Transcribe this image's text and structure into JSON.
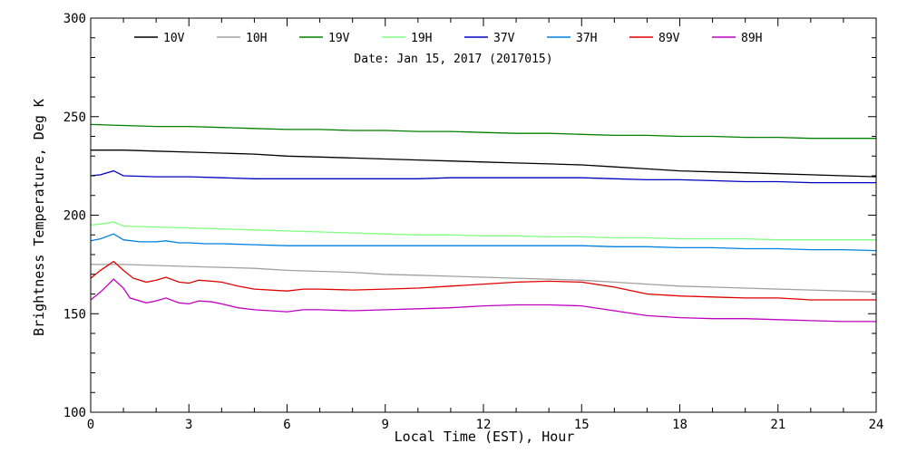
{
  "chart_data": {
    "type": "line",
    "subtitle": "Date: Jan 15, 2017 (2017015)",
    "xlabel": "Local Time (EST), Hour",
    "ylabel": "Brightness Temperature, Deg K",
    "xlim": [
      0,
      24
    ],
    "ylim": [
      100,
      300
    ],
    "xticks": [
      0,
      3,
      6,
      9,
      12,
      15,
      18,
      21,
      24
    ],
    "yticks": [
      100,
      150,
      200,
      250,
      300
    ],
    "grid": false,
    "legend_placement": "top",
    "series": [
      {
        "name": "10V",
        "color": "#000000",
        "points": [
          [
            0,
            233
          ],
          [
            1,
            233
          ],
          [
            2,
            232.5
          ],
          [
            3,
            232
          ],
          [
            4,
            231.5
          ],
          [
            5,
            231
          ],
          [
            6,
            230
          ],
          [
            7,
            229.5
          ],
          [
            8,
            229
          ],
          [
            9,
            228.5
          ],
          [
            10,
            228
          ],
          [
            11,
            227.5
          ],
          [
            12,
            227
          ],
          [
            13,
            226.5
          ],
          [
            14,
            226
          ],
          [
            15,
            225.5
          ],
          [
            16,
            224.5
          ],
          [
            17,
            223.5
          ],
          [
            18,
            222.5
          ],
          [
            19,
            222
          ],
          [
            20,
            221.5
          ],
          [
            21,
            221
          ],
          [
            22,
            220.5
          ],
          [
            23,
            220
          ],
          [
            24,
            219.5
          ]
        ]
      },
      {
        "name": "10H",
        "color": "#a0a0a0",
        "points": [
          [
            0,
            175
          ],
          [
            1,
            175
          ],
          [
            2,
            174.5
          ],
          [
            3,
            174
          ],
          [
            4,
            173.5
          ],
          [
            5,
            173
          ],
          [
            6,
            172
          ],
          [
            7,
            171.5
          ],
          [
            8,
            171
          ],
          [
            9,
            170
          ],
          [
            10,
            169.5
          ],
          [
            11,
            169
          ],
          [
            12,
            168.5
          ],
          [
            13,
            168
          ],
          [
            14,
            167.5
          ],
          [
            15,
            167
          ],
          [
            16,
            166
          ],
          [
            17,
            165
          ],
          [
            18,
            164
          ],
          [
            19,
            163.5
          ],
          [
            20,
            163
          ],
          [
            21,
            162.5
          ],
          [
            22,
            162
          ],
          [
            23,
            161.5
          ],
          [
            24,
            161
          ]
        ]
      },
      {
        "name": "19V",
        "color": "#008000",
        "points": [
          [
            0,
            246
          ],
          [
            1,
            245.5
          ],
          [
            2,
            245
          ],
          [
            3,
            245
          ],
          [
            4,
            244.5
          ],
          [
            5,
            244
          ],
          [
            6,
            243.5
          ],
          [
            7,
            243.5
          ],
          [
            8,
            243
          ],
          [
            9,
            243
          ],
          [
            10,
            242.5
          ],
          [
            11,
            242.5
          ],
          [
            12,
            242
          ],
          [
            13,
            241.5
          ],
          [
            14,
            241.5
          ],
          [
            15,
            241
          ],
          [
            16,
            240.5
          ],
          [
            17,
            240.5
          ],
          [
            18,
            240
          ],
          [
            19,
            240
          ],
          [
            20,
            239.5
          ],
          [
            21,
            239.5
          ],
          [
            22,
            239
          ],
          [
            23,
            239
          ],
          [
            24,
            239
          ]
        ]
      },
      {
        "name": "19H",
        "color": "#80ff80",
        "points": [
          [
            0,
            195
          ],
          [
            0.3,
            195.5
          ],
          [
            0.7,
            196.5
          ],
          [
            1,
            194.5
          ],
          [
            2,
            194
          ],
          [
            3,
            193.5
          ],
          [
            4,
            193
          ],
          [
            5,
            192.5
          ],
          [
            6,
            192
          ],
          [
            7,
            191.5
          ],
          [
            8,
            191
          ],
          [
            9,
            190.5
          ],
          [
            10,
            190
          ],
          [
            11,
            190
          ],
          [
            12,
            189.5
          ],
          [
            13,
            189.5
          ],
          [
            14,
            189
          ],
          [
            15,
            189
          ],
          [
            16,
            188.5
          ],
          [
            17,
            188.5
          ],
          [
            18,
            188
          ],
          [
            19,
            188
          ],
          [
            20,
            188
          ],
          [
            21,
            187.5
          ],
          [
            22,
            187.5
          ],
          [
            23,
            187.5
          ],
          [
            24,
            187.5
          ]
        ]
      },
      {
        "name": "37V",
        "color": "#0000c0",
        "points": [
          [
            0,
            220
          ],
          [
            0.3,
            220.5
          ],
          [
            0.7,
            222.5
          ],
          [
            1,
            220
          ],
          [
            2,
            219.5
          ],
          [
            3,
            219.5
          ],
          [
            4,
            219
          ],
          [
            5,
            218.5
          ],
          [
            6,
            218.5
          ],
          [
            7,
            218.5
          ],
          [
            8,
            218.5
          ],
          [
            9,
            218.5
          ],
          [
            10,
            218.5
          ],
          [
            11,
            219
          ],
          [
            12,
            219
          ],
          [
            13,
            219
          ],
          [
            14,
            219
          ],
          [
            15,
            219
          ],
          [
            16,
            218.5
          ],
          [
            17,
            218
          ],
          [
            18,
            218
          ],
          [
            19,
            217.5
          ],
          [
            20,
            217
          ],
          [
            21,
            217
          ],
          [
            22,
            216.5
          ],
          [
            23,
            216.5
          ],
          [
            24,
            216.5
          ]
        ]
      },
      {
        "name": "37H",
        "color": "#0080e0",
        "points": [
          [
            0,
            187
          ],
          [
            0.3,
            188
          ],
          [
            0.7,
            190.5
          ],
          [
            1,
            187.5
          ],
          [
            1.5,
            186.5
          ],
          [
            2,
            186.5
          ],
          [
            2.3,
            187
          ],
          [
            2.7,
            186
          ],
          [
            3,
            186
          ],
          [
            3.5,
            185.5
          ],
          [
            4,
            185.5
          ],
          [
            5,
            185
          ],
          [
            6,
            184.5
          ],
          [
            7,
            184.5
          ],
          [
            8,
            184.5
          ],
          [
            9,
            184.5
          ],
          [
            10,
            184.5
          ],
          [
            11,
            184.5
          ],
          [
            12,
            184.5
          ],
          [
            13,
            184.5
          ],
          [
            14,
            184.5
          ],
          [
            15,
            184.5
          ],
          [
            16,
            184
          ],
          [
            17,
            184
          ],
          [
            18,
            183.5
          ],
          [
            19,
            183.5
          ],
          [
            20,
            183
          ],
          [
            21,
            183
          ],
          [
            22,
            182.5
          ],
          [
            23,
            182.5
          ],
          [
            24,
            182
          ]
        ]
      },
      {
        "name": "89V",
        "color": "#e00000",
        "points": [
          [
            0,
            168
          ],
          [
            0.3,
            172
          ],
          [
            0.7,
            176.5
          ],
          [
            1,
            172
          ],
          [
            1.3,
            168
          ],
          [
            1.7,
            166
          ],
          [
            2,
            167
          ],
          [
            2.3,
            168.5
          ],
          [
            2.7,
            166
          ],
          [
            3,
            165.5
          ],
          [
            3.3,
            167
          ],
          [
            3.7,
            166.5
          ],
          [
            4,
            166
          ],
          [
            4.5,
            164
          ],
          [
            5,
            162.5
          ],
          [
            6,
            161.5
          ],
          [
            6.5,
            162.5
          ],
          [
            7,
            162.5
          ],
          [
            8,
            162
          ],
          [
            9,
            162.5
          ],
          [
            10,
            163
          ],
          [
            11,
            164
          ],
          [
            12,
            165
          ],
          [
            13,
            166
          ],
          [
            14,
            166.5
          ],
          [
            15,
            166
          ],
          [
            16,
            163.5
          ],
          [
            17,
            160
          ],
          [
            18,
            159
          ],
          [
            19,
            158.5
          ],
          [
            20,
            158
          ],
          [
            21,
            158
          ],
          [
            22,
            157
          ],
          [
            23,
            157
          ],
          [
            24,
            157
          ]
        ]
      },
      {
        "name": "89H",
        "color": "#c000c0",
        "points": [
          [
            0,
            157
          ],
          [
            0.3,
            161
          ],
          [
            0.7,
            167.5
          ],
          [
            1,
            163
          ],
          [
            1.2,
            158
          ],
          [
            1.7,
            155.5
          ],
          [
            2,
            156.5
          ],
          [
            2.3,
            158
          ],
          [
            2.7,
            155.5
          ],
          [
            3,
            155
          ],
          [
            3.3,
            156.5
          ],
          [
            3.7,
            156
          ],
          [
            4,
            155
          ],
          [
            4.5,
            153
          ],
          [
            5,
            152
          ],
          [
            6,
            151
          ],
          [
            6.5,
            152
          ],
          [
            7,
            152
          ],
          [
            8,
            151.5
          ],
          [
            9,
            152
          ],
          [
            10,
            152.5
          ],
          [
            11,
            153
          ],
          [
            12,
            154
          ],
          [
            13,
            154.5
          ],
          [
            14,
            154.5
          ],
          [
            15,
            154
          ],
          [
            16,
            151.5
          ],
          [
            17,
            149
          ],
          [
            18,
            148
          ],
          [
            19,
            147.5
          ],
          [
            20,
            147.5
          ],
          [
            21,
            147
          ],
          [
            22,
            146.5
          ],
          [
            23,
            146
          ],
          [
            24,
            146
          ]
        ]
      }
    ]
  }
}
